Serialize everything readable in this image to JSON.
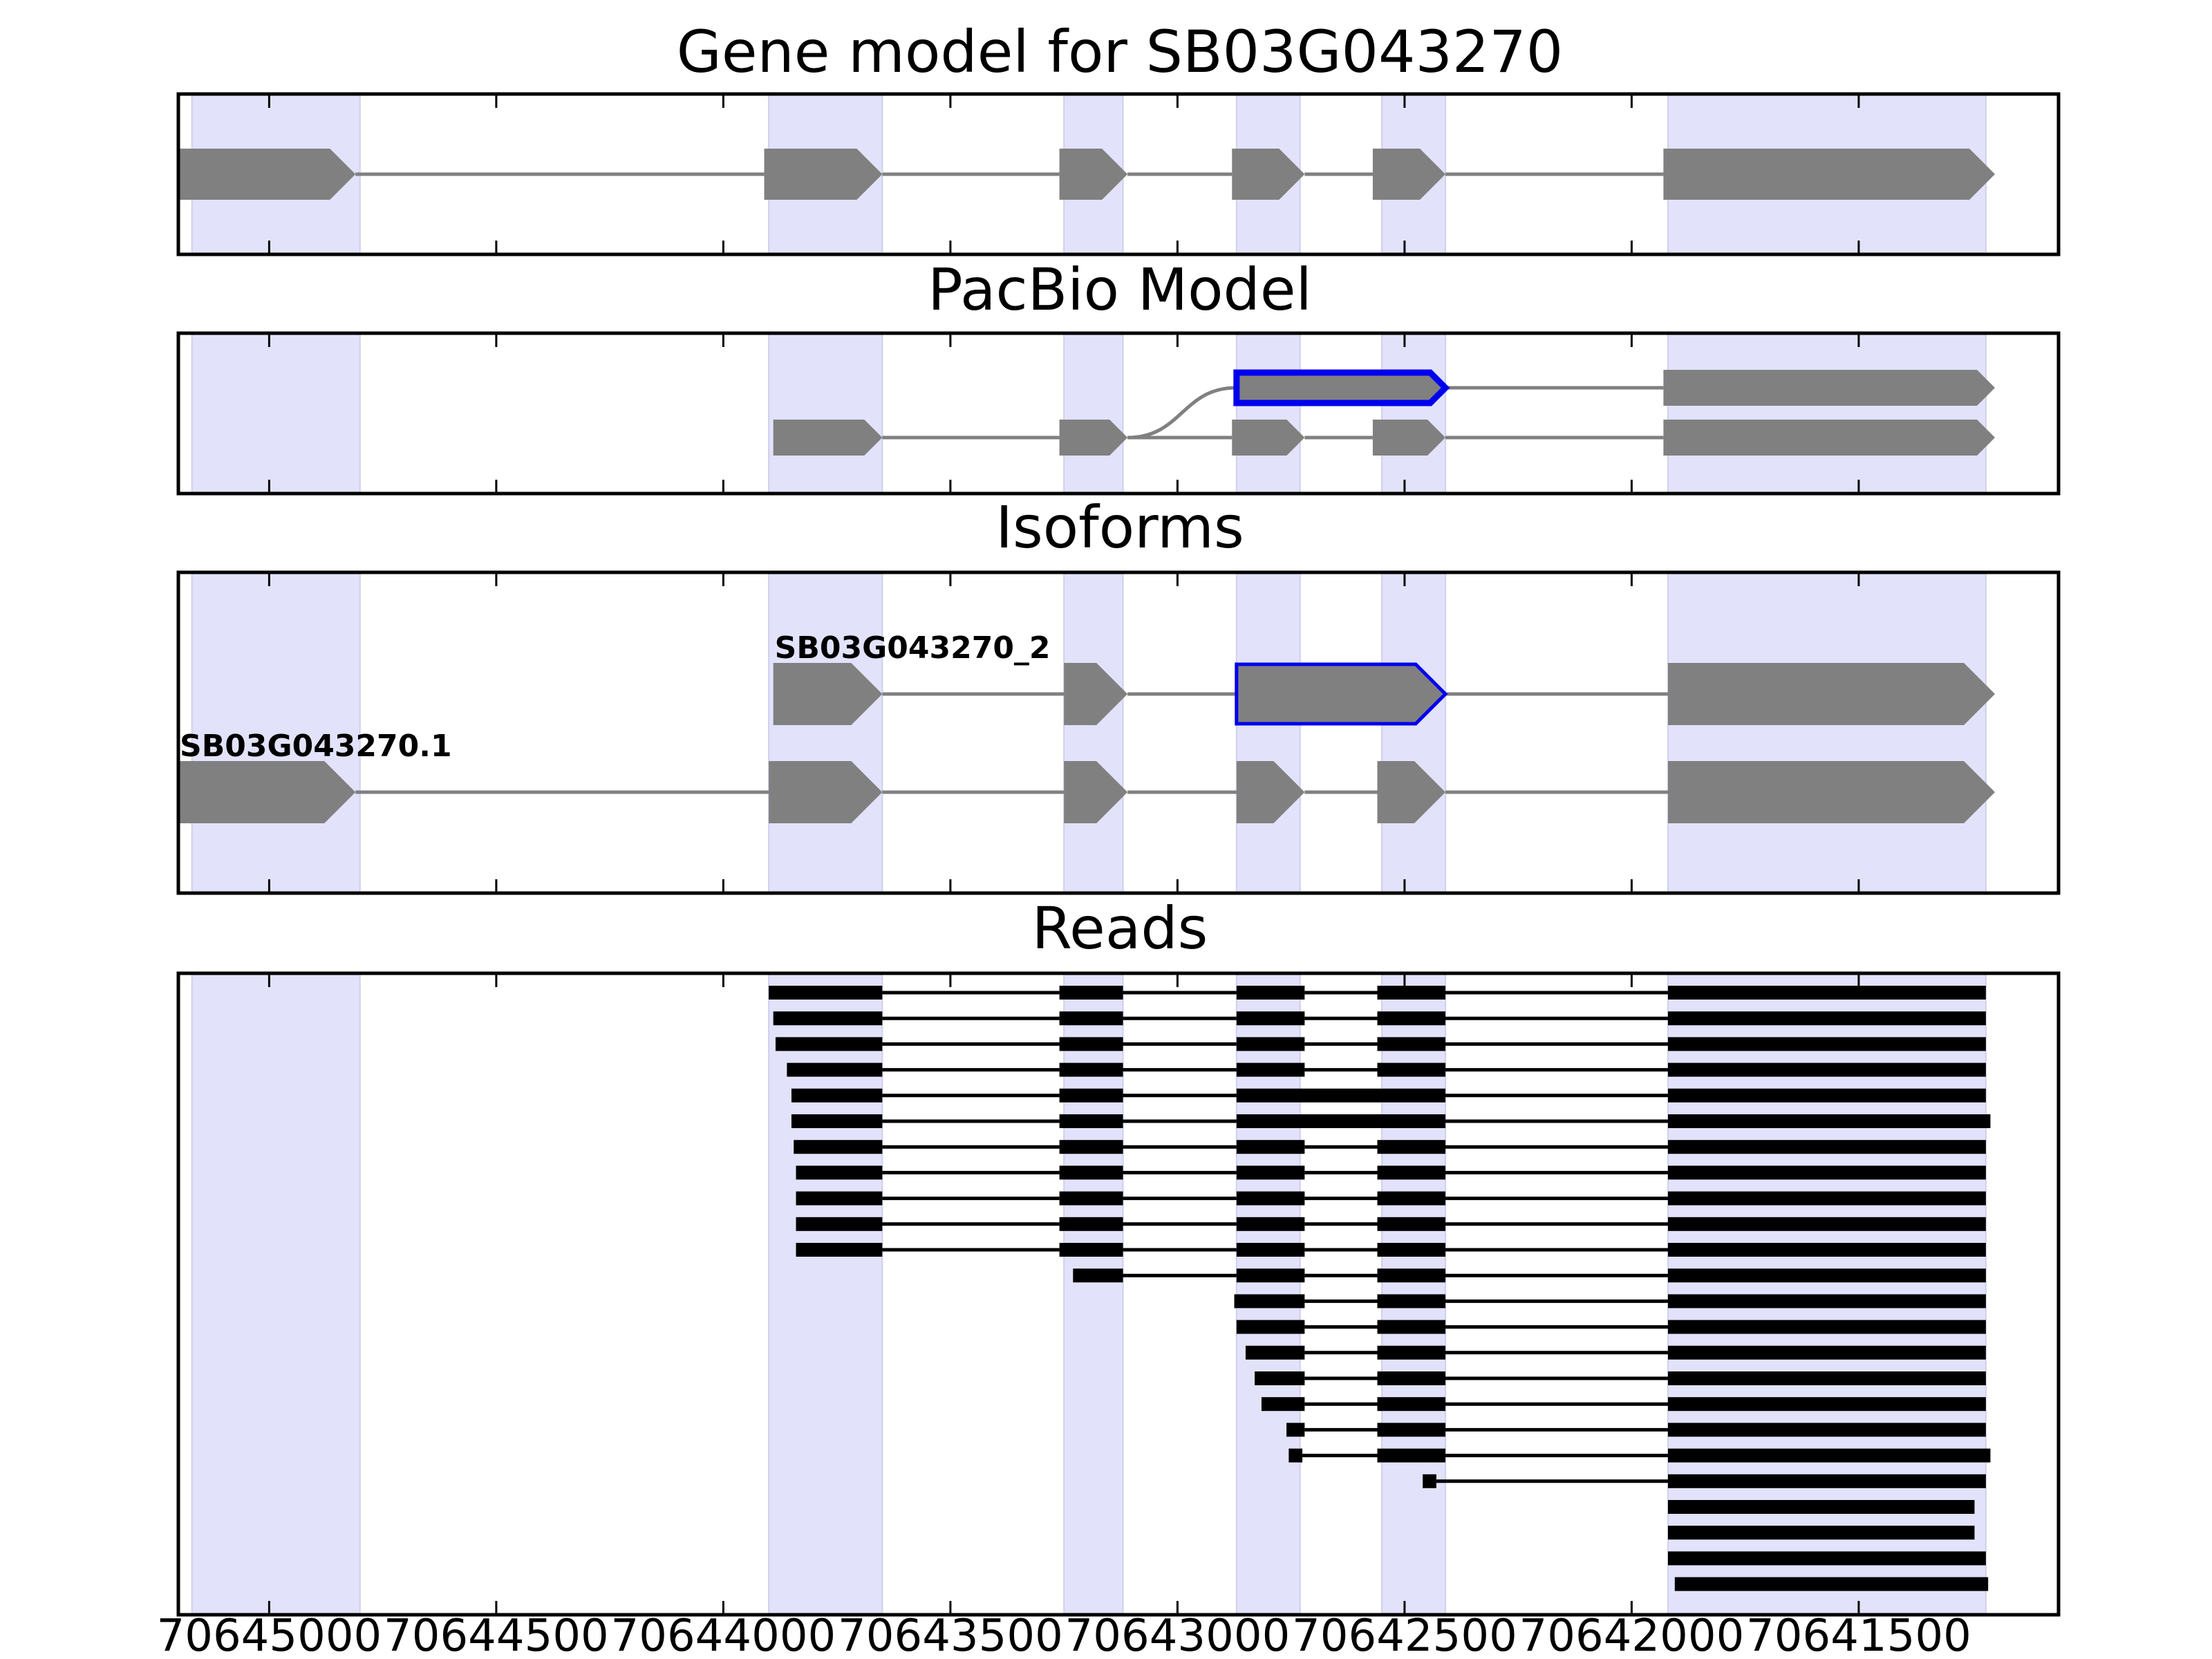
{
  "panels": {
    "gene": {
      "title": "Gene model for SB03G043270"
    },
    "pacbio": {
      "title": "PacBio Model"
    },
    "isoforms": {
      "title": "Isoforms"
    },
    "reads": {
      "title": "Reads"
    }
  },
  "x_axis": {
    "direction": "reversed",
    "ticks": [
      70645000,
      70644500,
      70644000,
      70643500,
      70643000,
      70642500,
      70642000,
      70641500
    ],
    "tick_labels": [
      "70645000",
      "70644500",
      "70644000",
      "70643500",
      "70643000",
      "70642500",
      "70642000",
      "70641500"
    ]
  },
  "exon_highlight_color": "#e2e2fa",
  "feature_color": "#808080",
  "selected_color": "#0000ee",
  "read_color": "#000000",
  "chart_data": {
    "type": "gene-structure",
    "title": "Gene model for SB03G043270",
    "xlim": [
      70645200,
      70641060
    ],
    "highlight_regions": [
      [
        70645170,
        70644800
      ],
      [
        70643900,
        70643650
      ],
      [
        70643250,
        70643120
      ],
      [
        70642870,
        70642730
      ],
      [
        70642550,
        70642410
      ],
      [
        70641920,
        70641220
      ]
    ],
    "gene_model": {
      "exons": [
        [
          70645200,
          70644810
        ],
        [
          70643910,
          70643650
        ],
        [
          70643260,
          70643110
        ],
        [
          70642880,
          70642720
        ],
        [
          70642570,
          70642410
        ],
        [
          70641930,
          70641200
        ]
      ]
    },
    "pacbio_models": [
      {
        "selected": true,
        "exons": [
          [
            70642870,
            70642410
          ],
          [
            70641930,
            70641200
          ]
        ],
        "connect_from_end": 70643110
      },
      {
        "selected": false,
        "exons": [
          [
            70643890,
            70643650
          ],
          [
            70643260,
            70643110
          ],
          [
            70642880,
            70642720
          ],
          [
            70642570,
            70642410
          ],
          [
            70641930,
            70641200
          ]
        ]
      }
    ],
    "isoforms": [
      {
        "name": "SB03G043270_2",
        "selected_exon_index": 2,
        "exons": [
          [
            70643890,
            70643650
          ],
          [
            70643250,
            70643110
          ],
          [
            70642870,
            70642410
          ],
          [
            70641920,
            70641200
          ]
        ]
      },
      {
        "name": "SB03G043270.1",
        "selected_exon_index": -1,
        "exons": [
          [
            70645200,
            70644810
          ],
          [
            70643900,
            70643650
          ],
          [
            70643250,
            70643110
          ],
          [
            70642870,
            70642720
          ],
          [
            70642560,
            70642410
          ],
          [
            70641920,
            70641200
          ]
        ]
      }
    ],
    "reads": [
      [
        [
          70643900,
          70643650
        ],
        [
          70643260,
          70643120
        ],
        [
          70642870,
          70642720
        ],
        [
          70642560,
          70642410
        ],
        [
          70641920,
          70641220
        ]
      ],
      [
        [
          70643890,
          70643650
        ],
        [
          70643260,
          70643120
        ],
        [
          70642870,
          70642720
        ],
        [
          70642560,
          70642410
        ],
        [
          70641920,
          70641220
        ]
      ],
      [
        [
          70643885,
          70643650
        ],
        [
          70643260,
          70643120
        ],
        [
          70642870,
          70642720
        ],
        [
          70642560,
          70642410
        ],
        [
          70641920,
          70641220
        ]
      ],
      [
        [
          70643860,
          70643650
        ],
        [
          70643260,
          70643120
        ],
        [
          70642870,
          70642720
        ],
        [
          70642560,
          70642410
        ],
        [
          70641920,
          70641220
        ]
      ],
      [
        [
          70643850,
          70643650
        ],
        [
          70643260,
          70643120
        ],
        [
          70642870,
          70642410
        ],
        [
          70641920,
          70641220
        ]
      ],
      [
        [
          70643850,
          70643650
        ],
        [
          70643260,
          70643120
        ],
        [
          70642870,
          70642410
        ],
        [
          70641920,
          70641210
        ]
      ],
      [
        [
          70643845,
          70643650
        ],
        [
          70643260,
          70643120
        ],
        [
          70642870,
          70642720
        ],
        [
          70642560,
          70642410
        ],
        [
          70641920,
          70641220
        ]
      ],
      [
        [
          70643840,
          70643650
        ],
        [
          70643260,
          70643120
        ],
        [
          70642870,
          70642720
        ],
        [
          70642560,
          70642410
        ],
        [
          70641920,
          70641220
        ]
      ],
      [
        [
          70643840,
          70643650
        ],
        [
          70643260,
          70643120
        ],
        [
          70642870,
          70642720
        ],
        [
          70642560,
          70642410
        ],
        [
          70641920,
          70641220
        ]
      ],
      [
        [
          70643840,
          70643650
        ],
        [
          70643260,
          70643120
        ],
        [
          70642870,
          70642720
        ],
        [
          70642560,
          70642410
        ],
        [
          70641920,
          70641220
        ]
      ],
      [
        [
          70643840,
          70643650
        ],
        [
          70643260,
          70643120
        ],
        [
          70642870,
          70642720
        ],
        [
          70642560,
          70642410
        ],
        [
          70641920,
          70641220
        ]
      ],
      [
        [
          70643230,
          70643120
        ],
        [
          70642870,
          70642720
        ],
        [
          70642560,
          70642410
        ],
        [
          70641920,
          70641220
        ]
      ],
      [
        [
          70642875,
          70642720
        ],
        [
          70642560,
          70642410
        ],
        [
          70641920,
          70641220
        ]
      ],
      [
        [
          70642870,
          70642720
        ],
        [
          70642560,
          70642410
        ],
        [
          70641920,
          70641220
        ]
      ],
      [
        [
          70642850,
          70642720
        ],
        [
          70642560,
          70642410
        ],
        [
          70641920,
          70641220
        ]
      ],
      [
        [
          70642830,
          70642720
        ],
        [
          70642560,
          70642410
        ],
        [
          70641920,
          70641220
        ]
      ],
      [
        [
          70642815,
          70642720
        ],
        [
          70642560,
          70642410
        ],
        [
          70641920,
          70641220
        ]
      ],
      [
        [
          70642760,
          70642720
        ],
        [
          70642560,
          70642410
        ],
        [
          70641920,
          70641220
        ]
      ],
      [
        [
          70642755,
          70642725
        ],
        [
          70642560,
          70642410
        ],
        [
          70641920,
          70641210
        ]
      ],
      [
        [
          70642460,
          70642430
        ],
        [
          70641920,
          70641220
        ]
      ],
      [
        [
          70641920,
          70641245
        ]
      ],
      [
        [
          70641920,
          70641245
        ]
      ],
      [
        [
          70641920,
          70641220
        ]
      ],
      [
        [
          70641905,
          70641215
        ]
      ]
    ]
  }
}
